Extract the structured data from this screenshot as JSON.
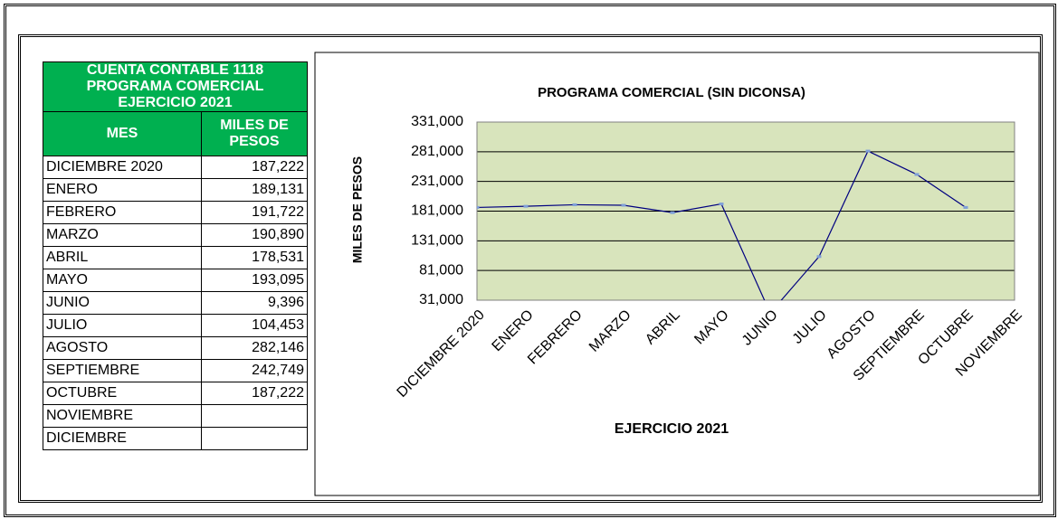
{
  "table": {
    "title": [
      "CUENTA CONTABLE 1118",
      "PROGRAMA COMERCIAL",
      "EJERCICIO 2021"
    ],
    "headers": [
      "MES",
      "MILES DE PESOS"
    ],
    "rows": [
      [
        "DICIEMBRE 2020",
        "187,222"
      ],
      [
        "ENERO",
        "189,131"
      ],
      [
        "FEBRERO",
        "191,722"
      ],
      [
        "MARZO",
        "190,890"
      ],
      [
        "ABRIL",
        "178,531"
      ],
      [
        "MAYO",
        "193,095"
      ],
      [
        "JUNIO",
        "9,396"
      ],
      [
        "JULIO",
        "104,453"
      ],
      [
        "AGOSTO",
        "282,146"
      ],
      [
        "SEPTIEMBRE",
        "242,749"
      ],
      [
        "OCTUBRE",
        "187,222"
      ],
      [
        "NOVIEMBRE"
      ],
      [
        "DICIEMBRE"
      ]
    ]
  },
  "chart_data": {
    "type": "line",
    "title": "PROGRAMA  COMERCIAL  (SIN DICONSA)",
    "x_label": "EJERCICIO 2021",
    "y_label": "MILES DE PESOS",
    "categories": [
      "DICIEMBRE 2020",
      "ENERO",
      "FEBRERO",
      "MARZO",
      "ABRIL",
      "MAYO",
      "JUNIO",
      "JULIO",
      "AGOSTO",
      "SEPTIEMBRE",
      "OCTUBRE",
      "NOVIEMBRE"
    ],
    "values": [
      187222,
      189131,
      191722,
      190890,
      178531,
      193095,
      9396,
      104453,
      282146,
      242749,
      187222,
      null
    ],
    "color": "#000080",
    "ylim": [
      31000,
      331000
    ],
    "yticks": [
      {
        "value": 31000,
        "label": "31,000"
      },
      {
        "value": 81000,
        "label": "81,000"
      },
      {
        "value": 131000,
        "label": "131,000"
      },
      {
        "value": 181000,
        "label": "181,000"
      },
      {
        "value": 231000,
        "label": "231,000"
      },
      {
        "value": 281000,
        "label": "281,000"
      },
      {
        "value": 331000,
        "label": "331,000"
      }
    ],
    "grid": true
  }
}
